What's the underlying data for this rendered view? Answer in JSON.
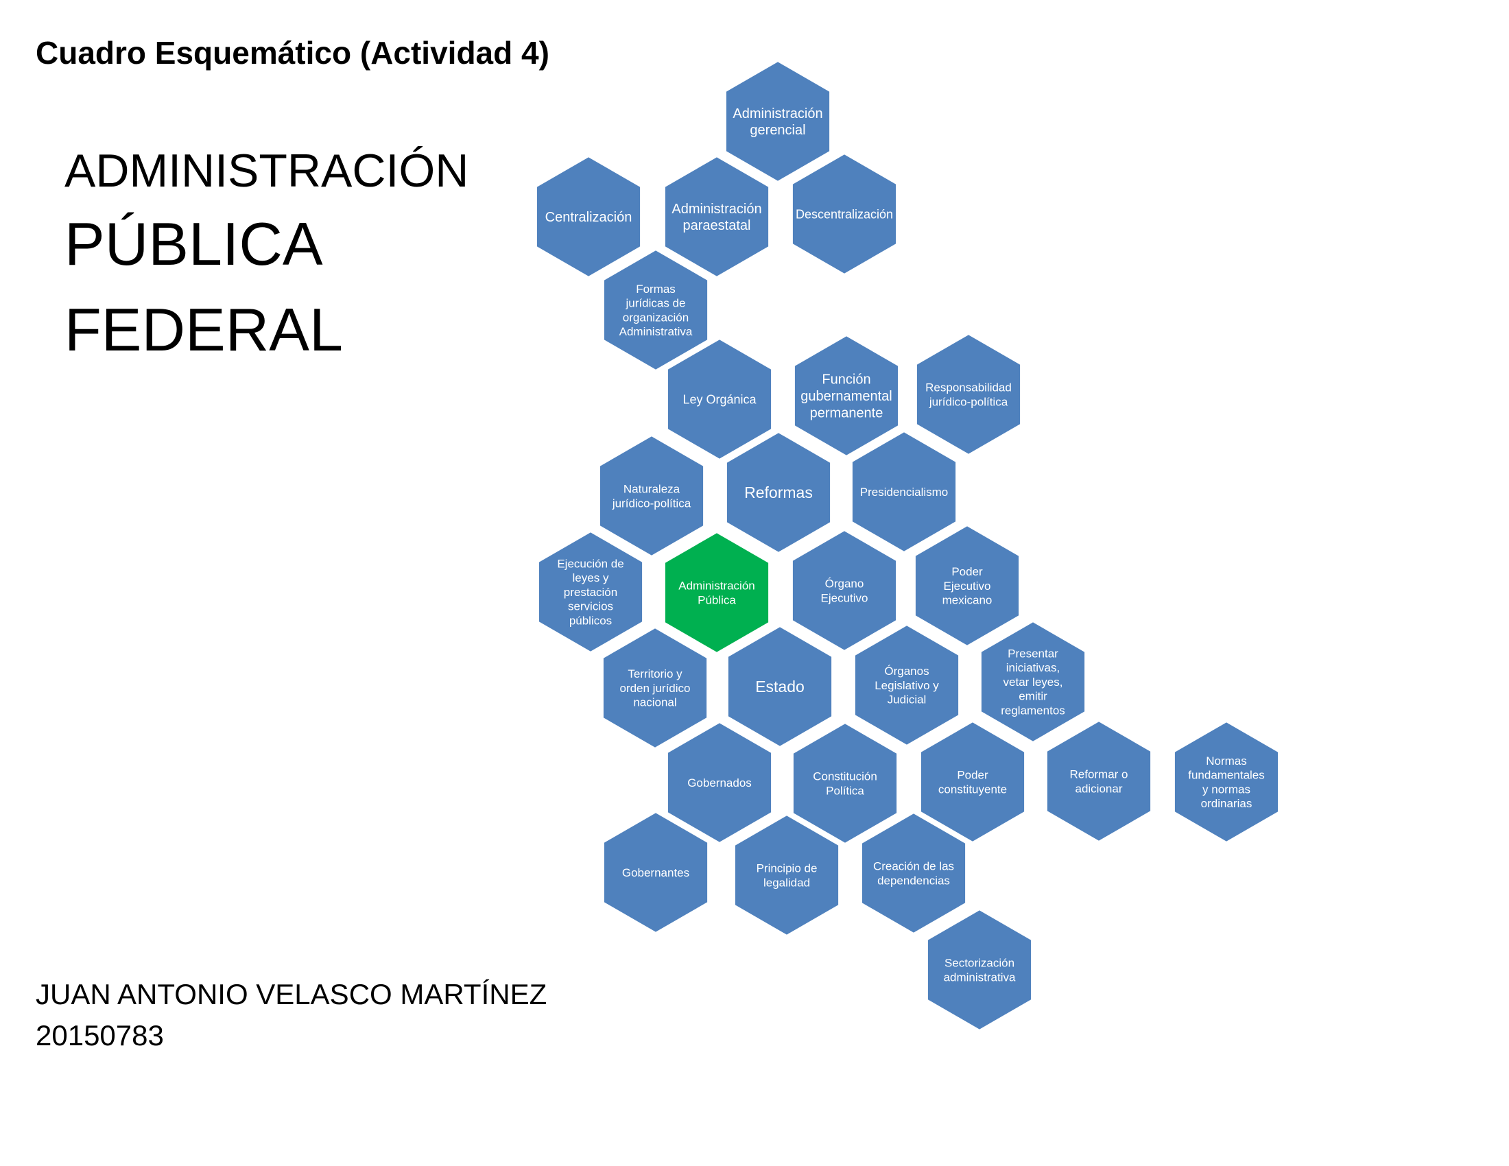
{
  "document": {
    "title": "Cuadro Esquemático (Actividad 4)",
    "heading_line1": "ADMINISTRACIÓN",
    "heading_line2": "PÚBLICA",
    "heading_line3": "FEDERAL",
    "author_name": "JUAN ANTONIO VELASCO MARTÍNEZ",
    "author_id": "20150783"
  },
  "colors": {
    "hex_fill": "#4f81bd",
    "center_fill": "#00b050",
    "label_color": "#ffffff"
  },
  "hexagons": [
    {
      "id": "administracion-gerencial",
      "lines": [
        "Administración",
        "gerencial"
      ]
    },
    {
      "id": "centralizacion",
      "lines": [
        "Centralización"
      ]
    },
    {
      "id": "administracion-paraestatal",
      "lines": [
        "Administración",
        "paraestatal"
      ]
    },
    {
      "id": "descentralizacion",
      "lines": [
        "Descentralización"
      ]
    },
    {
      "id": "formas-juridicas",
      "lines": [
        "Formas",
        "jurídicas de",
        "organización",
        "Administrativa"
      ]
    },
    {
      "id": "ley-organica",
      "lines": [
        "Ley Orgánica"
      ]
    },
    {
      "id": "funcion-gubernamental",
      "lines": [
        "Función",
        "gubernamental",
        "permanente"
      ]
    },
    {
      "id": "responsabilidad",
      "lines": [
        "Responsabilidad",
        "jurídico-política"
      ]
    },
    {
      "id": "naturaleza",
      "lines": [
        "Naturaleza",
        "jurídico-política"
      ]
    },
    {
      "id": "reformas",
      "lines": [
        "Reformas"
      ]
    },
    {
      "id": "presidencialismo",
      "lines": [
        "Presidencialismo"
      ]
    },
    {
      "id": "ejecucion-leyes",
      "lines": [
        "Ejecución de",
        "leyes y",
        "prestación",
        "servicios",
        "públicos"
      ]
    },
    {
      "id": "administracion-publica",
      "lines": [
        "Administración",
        "Pública"
      ],
      "center": true
    },
    {
      "id": "organo-ejecutivo",
      "lines": [
        "Órgano",
        "Ejecutivo"
      ]
    },
    {
      "id": "poder-ejecutivo",
      "lines": [
        "Poder",
        "Ejecutivo",
        "mexicano"
      ]
    },
    {
      "id": "territorio",
      "lines": [
        "Territorio y",
        "orden jurídico",
        "nacional"
      ]
    },
    {
      "id": "estado",
      "lines": [
        "Estado"
      ]
    },
    {
      "id": "organos-legislativo",
      "lines": [
        "Órganos",
        "Legislativo y",
        "Judicial"
      ]
    },
    {
      "id": "presentar-iniciativas",
      "lines": [
        "Presentar",
        "iniciativas,",
        "vetar leyes,",
        "emitir",
        "reglamentos"
      ]
    },
    {
      "id": "gobernados",
      "lines": [
        "Gobernados"
      ]
    },
    {
      "id": "constitucion",
      "lines": [
        "Constitución",
        "Política"
      ]
    },
    {
      "id": "poder-constituyente",
      "lines": [
        "Poder",
        "constituyente"
      ]
    },
    {
      "id": "reformar-adicionar",
      "lines": [
        "Reformar o",
        "adicionar"
      ]
    },
    {
      "id": "normas",
      "lines": [
        "Normas",
        "fundamentales",
        "y normas",
        "ordinarias"
      ]
    },
    {
      "id": "gobernantes",
      "lines": [
        "Gobernantes"
      ]
    },
    {
      "id": "principio-legalidad",
      "lines": [
        "Principio de",
        "legalidad"
      ]
    },
    {
      "id": "creacion-dependencias",
      "lines": [
        "Creación de las",
        "dependencias"
      ]
    },
    {
      "id": "sectorizacion",
      "lines": [
        "Sectorización",
        "administrativa"
      ]
    }
  ]
}
